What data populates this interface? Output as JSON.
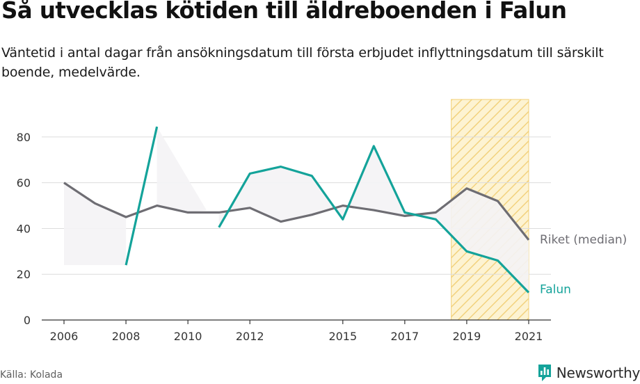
{
  "title": "Så utvecklas kötiden till äldreboenden i Falun",
  "subtitle": "Väntetid i antal dagar från ansökningsdatum till första erbjudet inflyttningsdatum till särskilt boende, medelvärde.",
  "source": "Källa: Kolada",
  "brand": {
    "name": "Newsworthy",
    "icon": "newsworthy-logo-icon"
  },
  "chart_data": {
    "type": "line",
    "title": "Så utvecklas kötiden till äldreboenden i Falun",
    "xlabel": "",
    "ylabel": "",
    "xlim": [
      2006,
      2021
    ],
    "ylim": [
      0,
      90
    ],
    "yticks": [
      0,
      20,
      40,
      60,
      80
    ],
    "xticks": [
      2006,
      2008,
      2010,
      2012,
      2015,
      2017,
      2019,
      2021
    ],
    "grid": "horizontal",
    "highlight_period": [
      2018.5,
      2021
    ],
    "series": [
      {
        "name": "Riket (median)",
        "color": "#6e6d73",
        "points": [
          [
            2006,
            60
          ],
          [
            2007,
            51
          ],
          [
            2008,
            45
          ],
          [
            2009,
            50
          ],
          [
            2010,
            47
          ],
          [
            2011,
            47
          ],
          [
            2012,
            49
          ],
          [
            2013,
            43
          ],
          [
            2014,
            46
          ],
          [
            2015,
            50
          ],
          [
            2016,
            48
          ],
          [
            2017,
            45.5
          ],
          [
            2018,
            47
          ],
          [
            2019,
            57.5
          ],
          [
            2020,
            52
          ],
          [
            2021,
            35
          ]
        ]
      },
      {
        "name": "Falun",
        "color": "#14a39a",
        "segments": [
          [
            [
              2008,
              24
            ],
            [
              2009,
              84.5
            ]
          ],
          [
            [
              2011,
              40.5
            ],
            [
              2012,
              64
            ],
            [
              2013,
              67
            ],
            [
              2014,
              63
            ],
            [
              2015,
              44
            ],
            [
              2016,
              76
            ],
            [
              2017,
              47
            ],
            [
              2018,
              44
            ],
            [
              2019,
              30
            ],
            [
              2020,
              26
            ],
            [
              2021,
              12
            ]
          ]
        ]
      }
    ]
  }
}
